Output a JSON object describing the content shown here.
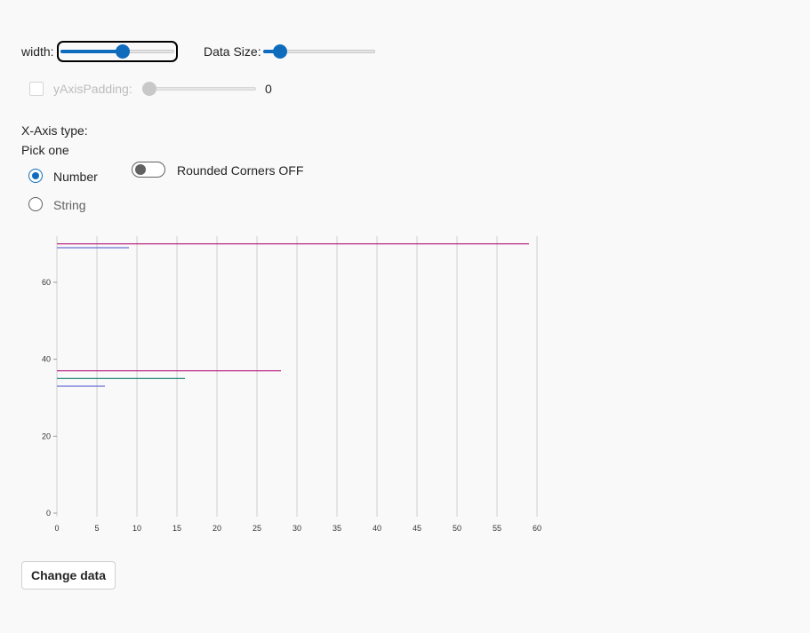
{
  "controls": {
    "width_label": "width:",
    "width_value": 0.55,
    "data_size_label": "Data Size:",
    "data_size_value": 0.1,
    "y_axis_padding_label": "yAxisPadding:",
    "y_axis_padding_value": "0",
    "x_axis_type_label": "X-Axis type:",
    "pick_one": "Pick one",
    "radio_number": "Number",
    "radio_string": "String",
    "rounded_corners": "Rounded Corners OFF",
    "change_data": "Change data"
  },
  "colors": {
    "accent": "#0f6cbd",
    "series_magenta": "#b3147a",
    "series_blue": "#6a6fd6",
    "series_teal": "#0e7a6a"
  },
  "chart_data": {
    "type": "bar",
    "orientation": "horizontal",
    "x_ticks": [
      0,
      5,
      10,
      15,
      20,
      25,
      30,
      35,
      40,
      45,
      50,
      55,
      60
    ],
    "y_ticks": [
      0,
      20,
      40,
      60
    ],
    "xlim": [
      0,
      60
    ],
    "ylim": [
      0,
      72
    ],
    "grid": "vertical",
    "bars": [
      {
        "y": 70,
        "x": 59,
        "color": "#b3147a"
      },
      {
        "y": 69,
        "x": 9,
        "color": "#6a6fd6"
      },
      {
        "y": 37,
        "x": 28,
        "color": "#b3147a"
      },
      {
        "y": 35,
        "x": 16,
        "color": "#0e7a6a"
      },
      {
        "y": 33,
        "x": 6,
        "color": "#6a6fd6"
      }
    ]
  }
}
